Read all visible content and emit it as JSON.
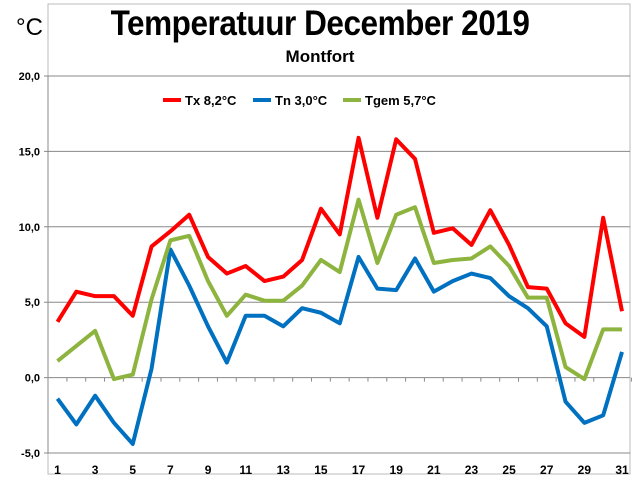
{
  "chart_data": {
    "type": "line",
    "title": "Temperatuur December 2019",
    "subtitle": "Montfort",
    "ylabel": "°C",
    "xlabel": "",
    "ylim": [
      -5,
      20
    ],
    "yticks": [
      "-5,0",
      "0,0",
      "5,0",
      "10,0",
      "15,0",
      "20,0"
    ],
    "ytick_values": [
      -5,
      0,
      5,
      10,
      15,
      20
    ],
    "xticks": [
      "1",
      "3",
      "5",
      "7",
      "9",
      "11",
      "13",
      "15",
      "17",
      "19",
      "21",
      "23",
      "25",
      "27",
      "29",
      "31"
    ],
    "x": [
      1,
      2,
      3,
      4,
      5,
      6,
      7,
      8,
      9,
      10,
      11,
      12,
      13,
      14,
      15,
      16,
      17,
      18,
      19,
      20,
      21,
      22,
      23,
      24,
      25,
      26,
      27,
      28,
      29,
      30,
      31
    ],
    "grid": true,
    "legend_position": "top-center",
    "series": [
      {
        "name": "Tx 8,2°C",
        "color": "#ff0000",
        "values": [
          3.7,
          5.7,
          5.4,
          5.4,
          4.1,
          8.7,
          9.7,
          10.8,
          8.0,
          6.9,
          7.4,
          6.4,
          6.7,
          7.8,
          11.2,
          9.5,
          15.9,
          10.6,
          15.8,
          14.5,
          9.6,
          9.9,
          8.8,
          11.1,
          8.8,
          6.0,
          5.9,
          3.6,
          2.7,
          10.6,
          4.4
        ]
      },
      {
        "name": "Tn 3,0°C",
        "color": "#0070c0",
        "values": [
          -1.4,
          -3.1,
          -1.2,
          -3.0,
          -4.4,
          0.6,
          8.5,
          6.1,
          3.4,
          1.0,
          4.1,
          4.1,
          3.4,
          4.6,
          4.3,
          3.6,
          8.0,
          5.9,
          5.8,
          7.9,
          5.7,
          6.4,
          6.9,
          6.6,
          5.4,
          4.6,
          3.4,
          -1.6,
          -3.0,
          -2.5,
          1.7
        ]
      },
      {
        "name": "Tgem 5,7°C",
        "color": "#8db43e",
        "values": [
          1.1,
          2.1,
          3.1,
          -0.1,
          0.2,
          5.2,
          9.1,
          9.4,
          6.4,
          4.1,
          5.5,
          5.1,
          5.1,
          6.1,
          7.8,
          7.0,
          11.8,
          7.6,
          10.8,
          11.3,
          7.6,
          7.8,
          7.9,
          8.7,
          7.4,
          5.3,
          5.3,
          0.7,
          -0.1,
          3.2,
          3.2
        ]
      }
    ]
  }
}
